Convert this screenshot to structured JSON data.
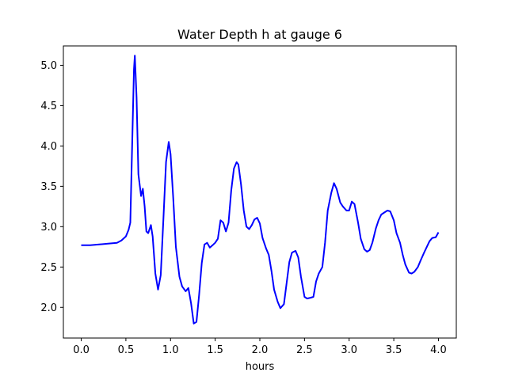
{
  "chart_data": {
    "type": "line",
    "title": "Water Depth h at gauge 6",
    "xlabel": "hours",
    "ylabel": "",
    "xlim": [
      -0.2,
      4.2
    ],
    "ylim": [
      1.62,
      5.24
    ],
    "x_ticks": [
      0.0,
      0.5,
      1.0,
      1.5,
      2.0,
      2.5,
      3.0,
      3.5,
      4.0
    ],
    "x_tick_labels": [
      "0.0",
      "0.5",
      "1.0",
      "1.5",
      "2.0",
      "2.5",
      "3.0",
      "3.5",
      "4.0"
    ],
    "y_ticks": [
      2.0,
      2.5,
      3.0,
      3.5,
      4.0,
      4.5,
      5.0
    ],
    "y_tick_labels": [
      "2.0",
      "2.5",
      "3.0",
      "3.5",
      "4.0",
      "4.5",
      "5.0"
    ],
    "grid": false,
    "series": [
      {
        "color": "#0000ff",
        "x": [
          0.0,
          0.1,
          0.2,
          0.3,
          0.4,
          0.45,
          0.5,
          0.53,
          0.55,
          0.57,
          0.59,
          0.6,
          0.62,
          0.64,
          0.67,
          0.69,
          0.71,
          0.73,
          0.75,
          0.78,
          0.8,
          0.83,
          0.86,
          0.89,
          0.92,
          0.95,
          0.98,
          1.0,
          1.03,
          1.06,
          1.1,
          1.13,
          1.17,
          1.2,
          1.23,
          1.26,
          1.29,
          1.32,
          1.35,
          1.38,
          1.41,
          1.44,
          1.47,
          1.5,
          1.53,
          1.56,
          1.59,
          1.62,
          1.65,
          1.68,
          1.71,
          1.74,
          1.76,
          1.79,
          1.82,
          1.85,
          1.88,
          1.91,
          1.94,
          1.97,
          2.0,
          2.03,
          2.07,
          2.1,
          2.13,
          2.16,
          2.2,
          2.23,
          2.27,
          2.3,
          2.33,
          2.36,
          2.4,
          2.43,
          2.46,
          2.5,
          2.53,
          2.57,
          2.6,
          2.63,
          2.66,
          2.7,
          2.73,
          2.76,
          2.8,
          2.83,
          2.86,
          2.9,
          2.93,
          2.97,
          3.0,
          3.03,
          3.06,
          3.1,
          3.13,
          3.17,
          3.2,
          3.23,
          3.26,
          3.3,
          3.33,
          3.36,
          3.4,
          3.43,
          3.46,
          3.5,
          3.53,
          3.57,
          3.6,
          3.63,
          3.67,
          3.7,
          3.73,
          3.77,
          3.8,
          3.84,
          3.87,
          3.9,
          3.93,
          3.97,
          4.0
        ],
        "y": [
          2.77,
          2.77,
          2.78,
          2.79,
          2.8,
          2.83,
          2.88,
          2.96,
          3.05,
          4.0,
          4.95,
          5.12,
          4.6,
          3.65,
          3.38,
          3.47,
          3.25,
          2.94,
          2.92,
          3.02,
          2.88,
          2.42,
          2.22,
          2.4,
          3.1,
          3.8,
          4.05,
          3.9,
          3.35,
          2.75,
          2.38,
          2.26,
          2.2,
          2.24,
          2.05,
          1.8,
          1.82,
          2.15,
          2.55,
          2.78,
          2.8,
          2.74,
          2.77,
          2.8,
          2.85,
          3.08,
          3.05,
          2.94,
          3.05,
          3.45,
          3.72,
          3.8,
          3.77,
          3.52,
          3.2,
          3.0,
          2.97,
          3.02,
          3.09,
          3.11,
          3.04,
          2.86,
          2.73,
          2.65,
          2.45,
          2.22,
          2.07,
          1.99,
          2.04,
          2.3,
          2.56,
          2.68,
          2.7,
          2.62,
          2.38,
          2.13,
          2.11,
          2.12,
          2.13,
          2.32,
          2.42,
          2.5,
          2.8,
          3.2,
          3.42,
          3.54,
          3.47,
          3.3,
          3.25,
          3.2,
          3.2,
          3.31,
          3.28,
          3.05,
          2.85,
          2.72,
          2.69,
          2.71,
          2.8,
          2.98,
          3.08,
          3.15,
          3.18,
          3.2,
          3.19,
          3.08,
          2.92,
          2.8,
          2.65,
          2.53,
          2.43,
          2.42,
          2.44,
          2.5,
          2.58,
          2.68,
          2.75,
          2.82,
          2.86,
          2.87,
          2.93
        ]
      }
    ]
  }
}
